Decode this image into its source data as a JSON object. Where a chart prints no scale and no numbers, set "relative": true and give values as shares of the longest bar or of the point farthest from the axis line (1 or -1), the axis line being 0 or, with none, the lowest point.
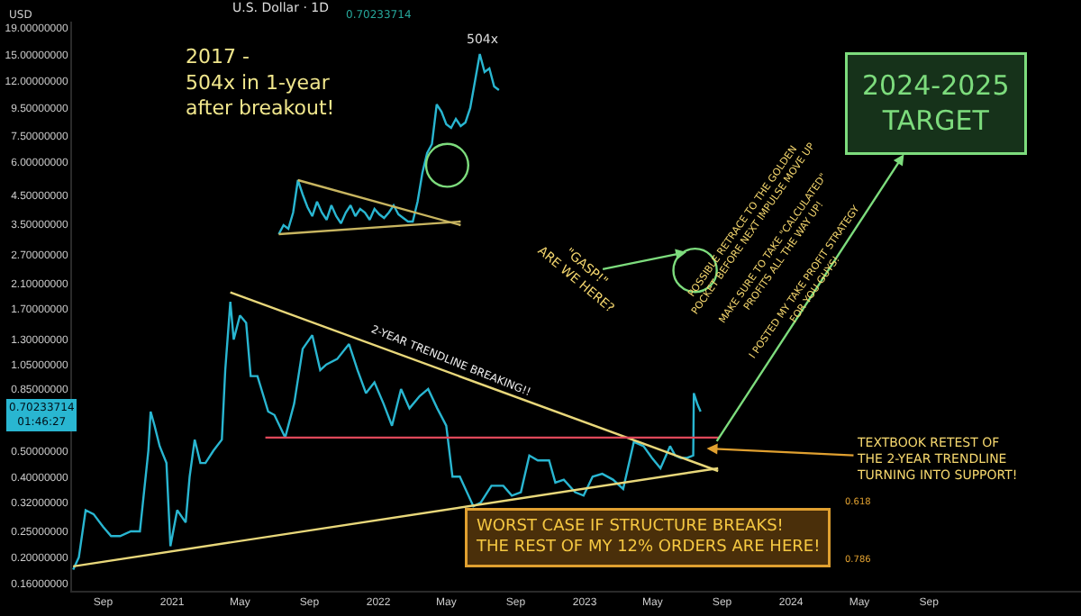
{
  "chart_data": [
    {
      "type": "line",
      "title": "U.S. Dollar · 1D",
      "log": true,
      "grid": false,
      "xlim": [
        "2020-07-08",
        "2025-05-28"
      ],
      "ylim": [
        0.15,
        20
      ],
      "xticks": [
        {
          "value": "2020-09-01",
          "label": "Sep"
        },
        {
          "value": "2021-01-01",
          "label": "2021"
        },
        {
          "value": "2021-05-01",
          "label": "May"
        },
        {
          "value": "2021-09-01",
          "label": "Sep"
        },
        {
          "value": "2022-01-01",
          "label": "2022"
        },
        {
          "value": "2022-05-01",
          "label": "May"
        },
        {
          "value": "2022-09-01",
          "label": "Sep"
        },
        {
          "value": "2023-01-01",
          "label": "2023"
        },
        {
          "value": "2023-05-01",
          "label": "May"
        },
        {
          "value": "2023-09-01",
          "label": "Sep"
        },
        {
          "value": "2024-01-01",
          "label": "2024"
        },
        {
          "value": "2024-05-01",
          "label": "May"
        },
        {
          "value": "2024-09-01",
          "label": "Sep"
        }
      ],
      "yticks": [
        {
          "value": 19,
          "label": "19.00000000"
        },
        {
          "value": 15,
          "label": "15.00000000"
        },
        {
          "value": 12,
          "label": "12.00000000"
        },
        {
          "value": 9.5,
          "label": "9.50000000"
        },
        {
          "value": 7.5,
          "label": "7.50000000"
        },
        {
          "value": 6,
          "label": "6.00000000"
        },
        {
          "value": 4.5,
          "label": "4.50000000"
        },
        {
          "value": 3.5,
          "label": "3.50000000"
        },
        {
          "value": 2.7,
          "label": "2.70000000"
        },
        {
          "value": 2.1,
          "label": "2.10000000"
        },
        {
          "value": 1.7,
          "label": "1.70000000"
        },
        {
          "value": 1.3,
          "label": "1.30000000"
        },
        {
          "value": 1.05,
          "label": "1.05000000"
        },
        {
          "value": 0.85,
          "label": "0.85000000"
        },
        {
          "value": 0.5,
          "label": "0.50000000"
        },
        {
          "value": 0.4,
          "label": "0.40000000"
        },
        {
          "value": 0.32,
          "label": "0.32000000"
        },
        {
          "value": 0.25,
          "label": "0.25000000"
        },
        {
          "value": 0.2,
          "label": "0.20000000"
        },
        {
          "value": 0.16,
          "label": "0.16000000"
        }
      ],
      "x": [
        "2020-07-10",
        "2020-07-20",
        "2020-08-01",
        "2020-08-15",
        "2020-09-01",
        "2020-09-15",
        "2020-10-01",
        "2020-10-20",
        "2020-11-05",
        "2020-11-20",
        "2020-11-24",
        "2020-12-01",
        "2020-12-10",
        "2020-12-22",
        "2020-12-29",
        "2021-01-10",
        "2021-01-25",
        "2021-02-01",
        "2021-02-10",
        "2021-02-20",
        "2021-03-01",
        "2021-03-15",
        "2021-03-30",
        "2021-04-05",
        "2021-04-14",
        "2021-04-20",
        "2021-05-01",
        "2021-05-12",
        "2021-05-20",
        "2021-06-01",
        "2021-06-20",
        "2021-07-01",
        "2021-07-20",
        "2021-08-05",
        "2021-08-20",
        "2021-09-06",
        "2021-09-20",
        "2021-10-01",
        "2021-10-20",
        "2021-11-10",
        "2021-11-25",
        "2021-12-10",
        "2021-12-25",
        "2022-01-10",
        "2022-01-25",
        "2022-02-10",
        "2022-02-25",
        "2022-03-15",
        "2022-03-30",
        "2022-04-15",
        "2022-05-01",
        "2022-05-12",
        "2022-05-25",
        "2022-06-18",
        "2022-07-01",
        "2022-07-20",
        "2022-08-10",
        "2022-08-25",
        "2022-09-10",
        "2022-09-25",
        "2022-10-10",
        "2022-10-30",
        "2022-11-10",
        "2022-11-25",
        "2022-12-15",
        "2022-12-30",
        "2023-01-15",
        "2023-02-01",
        "2023-02-20",
        "2023-03-10",
        "2023-03-29",
        "2023-04-15",
        "2023-04-30",
        "2023-05-15",
        "2023-06-01",
        "2023-06-10",
        "2023-06-20",
        "2023-07-01",
        "2023-07-12",
        "2023-07-13",
        "2023-07-20",
        "2023-07-25"
      ],
      "series": [
        {
          "color": "#29b6d1",
          "values": [
            0.18,
            0.2,
            0.3,
            0.29,
            0.26,
            0.24,
            0.24,
            0.25,
            0.25,
            0.5,
            0.7,
            0.62,
            0.52,
            0.45,
            0.22,
            0.3,
            0.27,
            0.4,
            0.55,
            0.45,
            0.45,
            0.5,
            0.55,
            1.0,
            1.8,
            1.3,
            1.6,
            1.5,
            0.95,
            0.95,
            0.7,
            0.68,
            0.56,
            0.75,
            1.2,
            1.35,
            1.0,
            1.05,
            1.1,
            1.25,
            1.0,
            0.82,
            0.9,
            0.75,
            0.62,
            0.85,
            0.72,
            0.8,
            0.85,
            0.72,
            0.62,
            0.4,
            0.4,
            0.31,
            0.32,
            0.37,
            0.37,
            0.34,
            0.35,
            0.48,
            0.46,
            0.46,
            0.38,
            0.39,
            0.35,
            0.34,
            0.4,
            0.41,
            0.39,
            0.36,
            0.54,
            0.52,
            0.47,
            0.43,
            0.52,
            0.48,
            0.47,
            0.47,
            0.48,
            0.82,
            0.74,
            0.7
          ]
        },
        {
          "type": "line",
          "color": "#e8d77a",
          "x": [
            "2021-04-14",
            "2023-08-25"
          ],
          "values": [
            1.95,
            0.42
          ]
        },
        {
          "type": "line",
          "color": "#e8d77a",
          "x": [
            "2020-07-10",
            "2023-08-25"
          ],
          "values": [
            0.185,
            0.43
          ]
        },
        {
          "type": "line",
          "color": "#e0485a",
          "x": [
            "2021-06-15",
            "2023-08-28"
          ],
          "values": [
            0.56,
            0.56
          ]
        }
      ],
      "annotations": [
        "USD",
        "0.70233714",
        "0.70233714\n01:46:27",
        "2024-2025\nTARGET",
        "\"GASP!\"\nARE WE HERE?",
        "POSSIBLE RETRACE TO THE GOLDEN\nPOCKET BEFORE NEXT IMPULSE MOVE UP",
        "MAKE SURE TO TAKE \"CALCULATED\"\nPROFITS ALL THE WAY UP!",
        "I POSTED MY TAKE PROFIT STRATEGY\nFOR YOU GUYS!",
        "2-YEAR TRENDLINE BREAKING!!",
        "TEXTBOOK RETEST OF\nTHE 2-YEAR TRENDLINE\nTURNING INTO SUPPORT!",
        "WORST CASE IF STRUCTURE BREAKS!\nTHE REST OF MY 12% ORDERS ARE HERE!",
        "0.618",
        "0.786"
      ]
    },
    {
      "type": "line",
      "relative": true,
      "categories": [
        null,
        null,
        null,
        null,
        null,
        null,
        null,
        null,
        null,
        null,
        null,
        null,
        null,
        null,
        null,
        null,
        null,
        null,
        null,
        null,
        null,
        null,
        null,
        null,
        null,
        null,
        null,
        null,
        null,
        null,
        null,
        null,
        null,
        null,
        null,
        null,
        null,
        null,
        null,
        null,
        null,
        null,
        null,
        null,
        null,
        null,
        null
      ],
      "series": [
        {
          "color": "#29b6d1",
          "values": [
            0,
            0.05,
            0.03,
            0.12,
            0.3,
            0.22,
            0.15,
            0.1,
            0.18,
            0.12,
            0.08,
            0.16,
            0.1,
            0.06,
            0.12,
            0.16,
            0.1,
            0.14,
            0.12,
            0.08,
            0.14,
            0.11,
            0.09,
            0.12,
            0.16,
            0.11,
            0.09,
            0.07,
            0.07,
            0.18,
            0.34,
            0.45,
            0.5,
            0.72,
            0.68,
            0.61,
            0.59,
            0.64,
            0.6,
            0.62,
            0.7,
            0.85,
            1,
            0.9,
            0.92,
            0.82,
            0.8
          ]
        },
        {
          "type": "line",
          "color": "#c8b560",
          "values": [
            null,
            null,
            null,
            null,
            0.3,
            null,
            null,
            null,
            null,
            null,
            null,
            null,
            null,
            null,
            null,
            null,
            null,
            null,
            null,
            null,
            null,
            null,
            null,
            null,
            null,
            null,
            null,
            null,
            null,
            null,
            null,
            null,
            null,
            null,
            null,
            null,
            null,
            null,
            0.05,
            null,
            null,
            null,
            null,
            null,
            null,
            null,
            null
          ]
        },
        {
          "type": "line",
          "color": "#c8b560",
          "values": [
            0,
            null,
            null,
            null,
            null,
            null,
            null,
            null,
            null,
            null,
            null,
            null,
            null,
            null,
            null,
            null,
            null,
            null,
            null,
            null,
            null,
            null,
            null,
            null,
            null,
            null,
            null,
            null,
            null,
            null,
            null,
            null,
            null,
            null,
            null,
            null,
            null,
            null,
            0.07,
            null,
            null,
            null,
            null,
            null,
            null,
            null,
            null
          ]
        }
      ],
      "annotations": [
        "2017 -\n504x in 1-year\nafter breakout!",
        "504x"
      ]
    }
  ]
}
